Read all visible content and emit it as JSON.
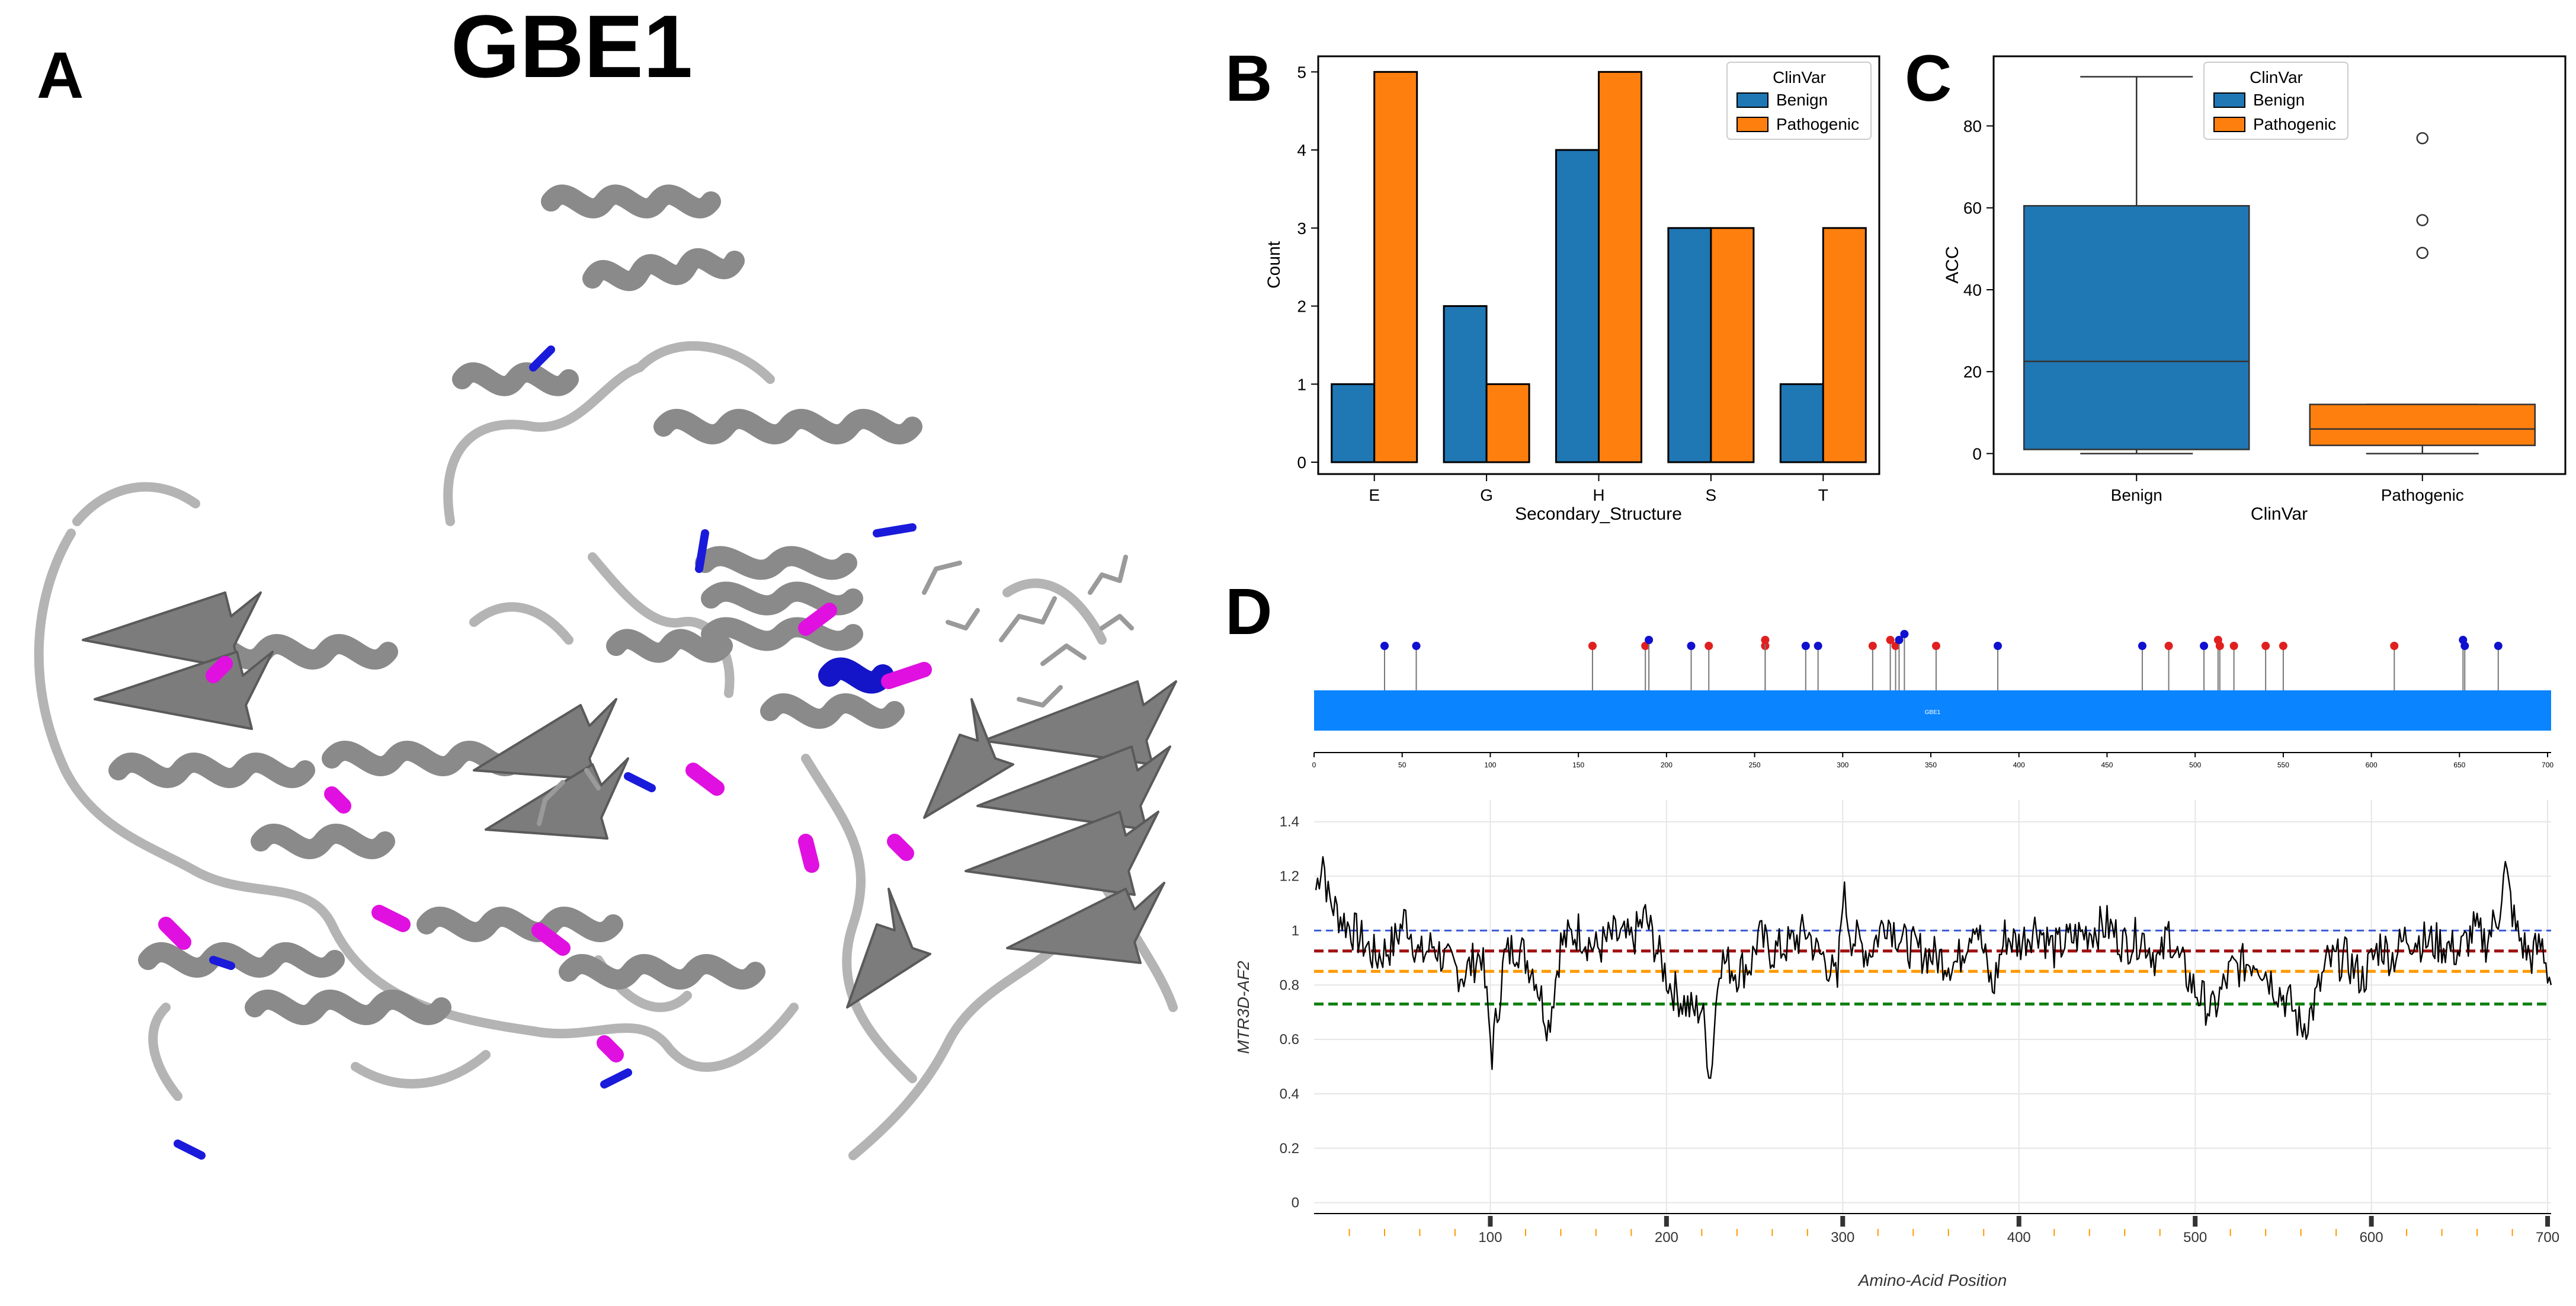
{
  "panel_labels": {
    "a": "A",
    "b": "B",
    "c": "C",
    "d": "D"
  },
  "protein": {
    "title": "GBE1",
    "structure_image": "protein-cartoon-structure"
  },
  "colors": {
    "benign": "#1f77b4",
    "pathogenic": "#ff7f0e",
    "gray_cartoon": "#9e9e9e",
    "benign_site": "#1a1adb",
    "pathogenic_site": "#e010e0",
    "domain_bar": "#0a84ff",
    "lollipop_benign": "#1010d0",
    "lollipop_pathogenic": "#e02020",
    "ref_blue": "#3a5bd9",
    "ref_red": "#a01010",
    "ref_orange": "#ff9900",
    "ref_green": "#108010"
  },
  "chart_data": [
    {
      "id": "B",
      "type": "bar",
      "title": "",
      "xlabel": "Secondary_Structure",
      "ylabel": "Count",
      "categories": [
        "E",
        "G",
        "H",
        "S",
        "T"
      ],
      "ylim": [
        0,
        5.2
      ],
      "yticks": [
        0,
        1,
        2,
        3,
        4,
        5
      ],
      "legend": {
        "title": "ClinVar",
        "position": "top-right"
      },
      "series": [
        {
          "name": "Benign",
          "values": [
            1,
            2,
            4,
            3,
            1
          ]
        },
        {
          "name": "Pathogenic",
          "values": [
            5,
            1,
            5,
            3,
            3
          ]
        }
      ]
    },
    {
      "id": "C",
      "type": "box",
      "xlabel": "ClinVar",
      "ylabel": "ACC",
      "categories": [
        "Benign",
        "Pathogenic"
      ],
      "ylim": [
        -5,
        97
      ],
      "yticks": [
        0,
        20,
        40,
        60,
        80
      ],
      "legend": {
        "title": "ClinVar",
        "entries": [
          "Benign",
          "Pathogenic"
        ],
        "position": "top-center"
      },
      "boxes": [
        {
          "name": "Benign",
          "whisker_low": 0,
          "q1": 1,
          "median": 22.5,
          "q3": 60.5,
          "whisker_high": 92,
          "outliers": []
        },
        {
          "name": "Pathogenic",
          "whisker_low": 0,
          "q1": 2,
          "median": 6,
          "q3": 12,
          "whisker_high": 12,
          "outliers": [
            49,
            57,
            77
          ]
        }
      ]
    },
    {
      "id": "D-top",
      "type": "lollipop",
      "domain_label": "GBE1",
      "xlim": [
        0,
        702
      ],
      "xticks": [
        0,
        50,
        100,
        150,
        200,
        250,
        300,
        350,
        400,
        450,
        500,
        550,
        600,
        650,
        700
      ],
      "variants": [
        {
          "pos": 40,
          "cls": "benign",
          "level": 0
        },
        {
          "pos": 58,
          "cls": "benign",
          "level": 0
        },
        {
          "pos": 158,
          "cls": "pathogenic",
          "level": 0
        },
        {
          "pos": 188,
          "cls": "pathogenic",
          "level": 0
        },
        {
          "pos": 190,
          "cls": "benign",
          "level": 1
        },
        {
          "pos": 214,
          "cls": "benign",
          "level": 0
        },
        {
          "pos": 224,
          "cls": "pathogenic",
          "level": 0
        },
        {
          "pos": 256,
          "cls": "pathogenic",
          "level": 0
        },
        {
          "pos": 256,
          "cls": "pathogenic",
          "level": 1
        },
        {
          "pos": 279,
          "cls": "benign",
          "level": 0
        },
        {
          "pos": 286,
          "cls": "benign",
          "level": 0
        },
        {
          "pos": 317,
          "cls": "pathogenic",
          "level": 0
        },
        {
          "pos": 327,
          "cls": "pathogenic",
          "level": 1
        },
        {
          "pos": 330,
          "cls": "pathogenic",
          "level": 0
        },
        {
          "pos": 332,
          "cls": "benign",
          "level": 1
        },
        {
          "pos": 335,
          "cls": "benign",
          "level": 2
        },
        {
          "pos": 353,
          "cls": "pathogenic",
          "level": 0
        },
        {
          "pos": 388,
          "cls": "benign",
          "level": 0
        },
        {
          "pos": 470,
          "cls": "benign",
          "level": 0
        },
        {
          "pos": 485,
          "cls": "pathogenic",
          "level": 0
        },
        {
          "pos": 505,
          "cls": "benign",
          "level": 0
        },
        {
          "pos": 513,
          "cls": "pathogenic",
          "level": 1
        },
        {
          "pos": 514,
          "cls": "pathogenic",
          "level": 0
        },
        {
          "pos": 522,
          "cls": "pathogenic",
          "level": 0
        },
        {
          "pos": 540,
          "cls": "pathogenic",
          "level": 0
        },
        {
          "pos": 550,
          "cls": "pathogenic",
          "level": 0
        },
        {
          "pos": 613,
          "cls": "pathogenic",
          "level": 0
        },
        {
          "pos": 652,
          "cls": "benign",
          "level": 1
        },
        {
          "pos": 653,
          "cls": "benign",
          "level": 0
        },
        {
          "pos": 672,
          "cls": "benign",
          "level": 0
        }
      ]
    },
    {
      "id": "D-bottom",
      "type": "line",
      "xlabel": "Amino-Acid Position",
      "ylabel": "MTR3D-AF2",
      "xlim": [
        0,
        702
      ],
      "ylim": [
        -0.04,
        1.48
      ],
      "xticks": [
        100,
        200,
        300,
        400,
        500,
        600,
        700
      ],
      "yticks": [
        0,
        0.2,
        0.4,
        0.6,
        0.8,
        1,
        1.2,
        1.4
      ],
      "ytick_labels": [
        "0",
        "0.2",
        "0.4",
        "0.6",
        "0.8",
        "1",
        "1.2",
        "1.4"
      ],
      "reference_lines": [
        {
          "value": 1.0,
          "color": "ref_blue",
          "style": "dashed"
        },
        {
          "value": 0.925,
          "color": "ref_red",
          "style": "dashed"
        },
        {
          "value": 0.85,
          "color": "ref_orange",
          "style": "dashed"
        },
        {
          "value": 0.73,
          "color": "ref_green",
          "style": "dashed"
        }
      ],
      "anchors": [
        [
          1,
          1.15
        ],
        [
          5,
          1.28
        ],
        [
          8,
          1.12
        ],
        [
          15,
          1.05
        ],
        [
          25,
          0.98
        ],
        [
          35,
          0.9
        ],
        [
          45,
          0.95
        ],
        [
          52,
          1.05
        ],
        [
          60,
          0.9
        ],
        [
          68,
          0.95
        ],
        [
          75,
          0.88
        ],
        [
          85,
          0.84
        ],
        [
          95,
          0.92
        ],
        [
          101,
          0.55
        ],
        [
          108,
          0.9
        ],
        [
          115,
          0.95
        ],
        [
          125,
          0.85
        ],
        [
          133,
          0.65
        ],
        [
          140,
          0.95
        ],
        [
          150,
          1.0
        ],
        [
          160,
          0.93
        ],
        [
          170,
          0.98
        ],
        [
          180,
          0.96
        ],
        [
          188,
          1.05
        ],
        [
          195,
          0.92
        ],
        [
          202,
          0.8
        ],
        [
          208,
          0.75
        ],
        [
          215,
          0.7
        ],
        [
          220,
          0.72
        ],
        [
          225,
          0.46
        ],
        [
          230,
          0.9
        ],
        [
          240,
          0.85
        ],
        [
          248,
          0.88
        ],
        [
          252,
          0.98
        ],
        [
          260,
          0.92
        ],
        [
          270,
          0.95
        ],
        [
          280,
          1.0
        ],
        [
          285,
          0.92
        ],
        [
          290,
          0.9
        ],
        [
          297,
          0.8
        ],
        [
          300,
          1.15
        ],
        [
          305,
          0.98
        ],
        [
          315,
          0.92
        ],
        [
          325,
          1.05
        ],
        [
          335,
          0.95
        ],
        [
          345,
          0.92
        ],
        [
          355,
          0.9
        ],
        [
          365,
          0.88
        ],
        [
          375,
          1.05
        ],
        [
          385,
          0.78
        ],
        [
          392,
          0.98
        ],
        [
          400,
          0.95
        ],
        [
          410,
          1.02
        ],
        [
          420,
          0.93
        ],
        [
          430,
          0.97
        ],
        [
          440,
          1.0
        ],
        [
          450,
          1.02
        ],
        [
          460,
          0.95
        ],
        [
          470,
          0.98
        ],
        [
          480,
          0.88
        ],
        [
          485,
          1.0
        ],
        [
          490,
          0.9
        ],
        [
          500,
          0.78
        ],
        [
          510,
          0.7
        ],
        [
          520,
          0.85
        ],
        [
          535,
          0.9
        ],
        [
          545,
          0.8
        ],
        [
          555,
          0.72
        ],
        [
          560,
          0.64
        ],
        [
          566,
          0.7
        ],
        [
          575,
          0.88
        ],
        [
          585,
          0.9
        ],
        [
          595,
          0.82
        ],
        [
          605,
          0.95
        ],
        [
          612,
          0.9
        ],
        [
          620,
          0.98
        ],
        [
          630,
          0.96
        ],
        [
          640,
          0.95
        ],
        [
          650,
          0.92
        ],
        [
          658,
          1.0
        ],
        [
          665,
          0.96
        ],
        [
          672,
          1.06
        ],
        [
          676,
          1.22
        ],
        [
          682,
          1.0
        ],
        [
          690,
          0.9
        ],
        [
          697,
          0.95
        ],
        [
          702,
          0.8
        ]
      ]
    }
  ]
}
